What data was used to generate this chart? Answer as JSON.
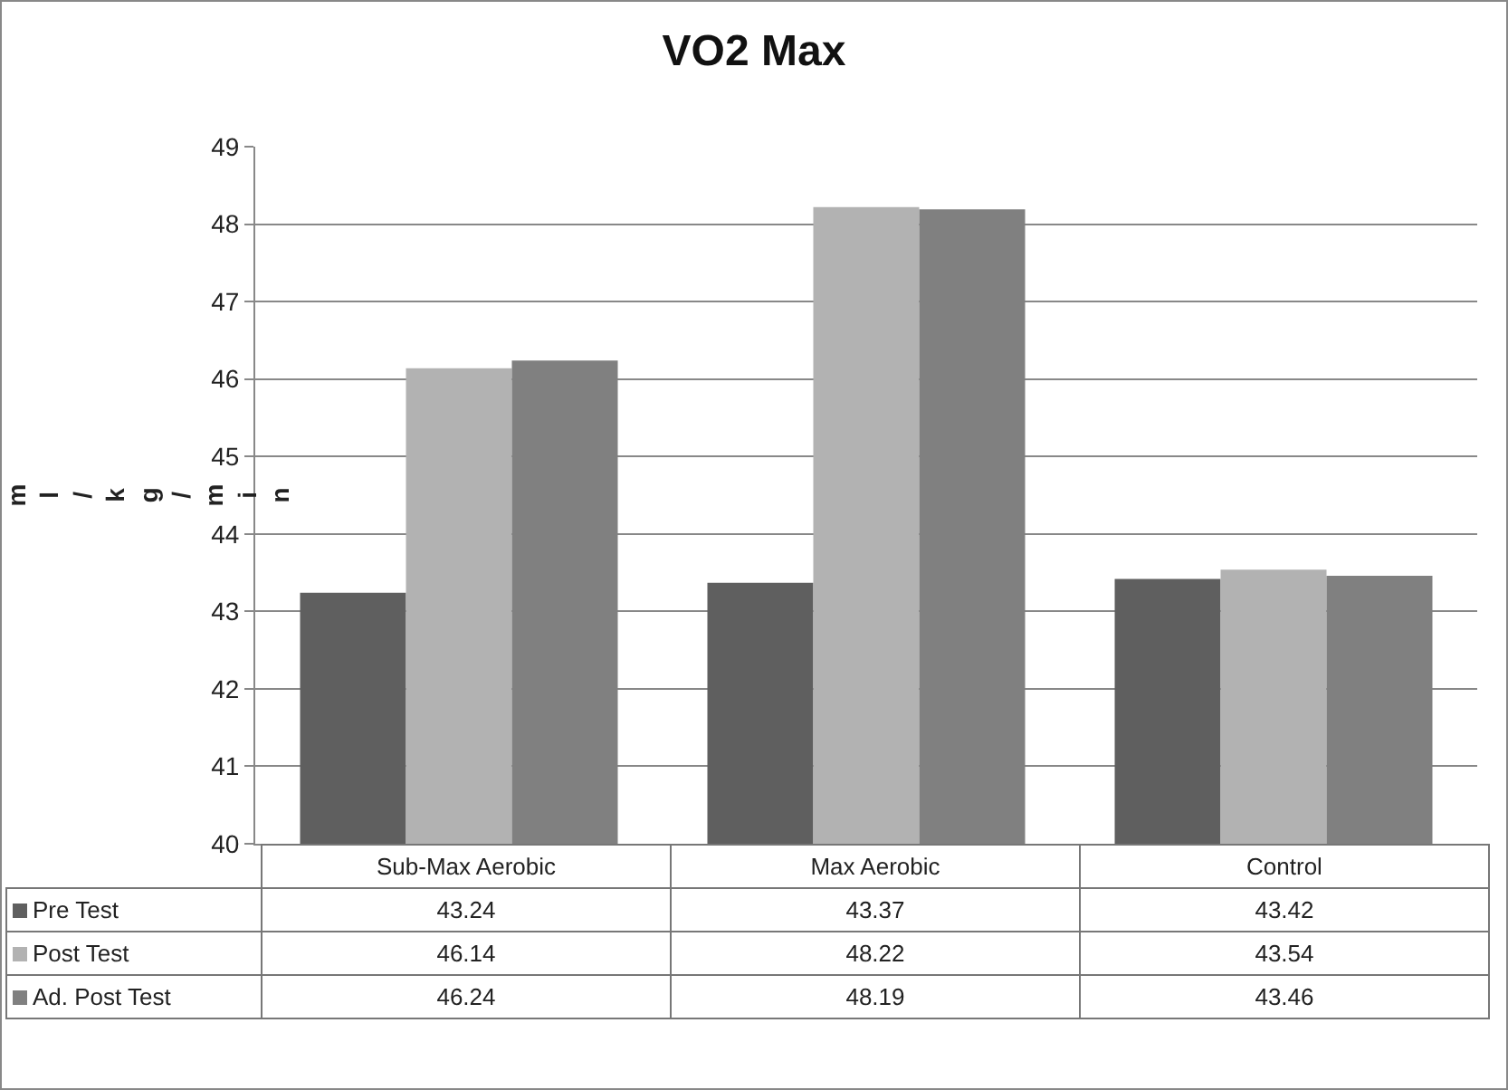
{
  "chart_data": {
    "type": "bar",
    "title": "VO2 Max",
    "ylabel": "ml/kg/min",
    "categories": [
      "Sub-Max Aerobic",
      "Max Aerobic",
      "Control"
    ],
    "series": [
      {
        "name": "Pre Test",
        "color": "#5f5f5f",
        "values": [
          43.24,
          43.37,
          43.42
        ]
      },
      {
        "name": "Post Test",
        "color": "#b2b2b2",
        "values": [
          46.14,
          48.22,
          43.54
        ]
      },
      {
        "name": "Ad. Post Test",
        "color": "#808080",
        "values": [
          46.24,
          48.19,
          43.46
        ]
      }
    ],
    "ylim": [
      40,
      49
    ],
    "yticks": [
      40,
      41,
      42,
      43,
      44,
      45,
      46,
      47,
      48,
      49
    ],
    "grid": "y",
    "legend": "bottom",
    "data_labels": true
  }
}
